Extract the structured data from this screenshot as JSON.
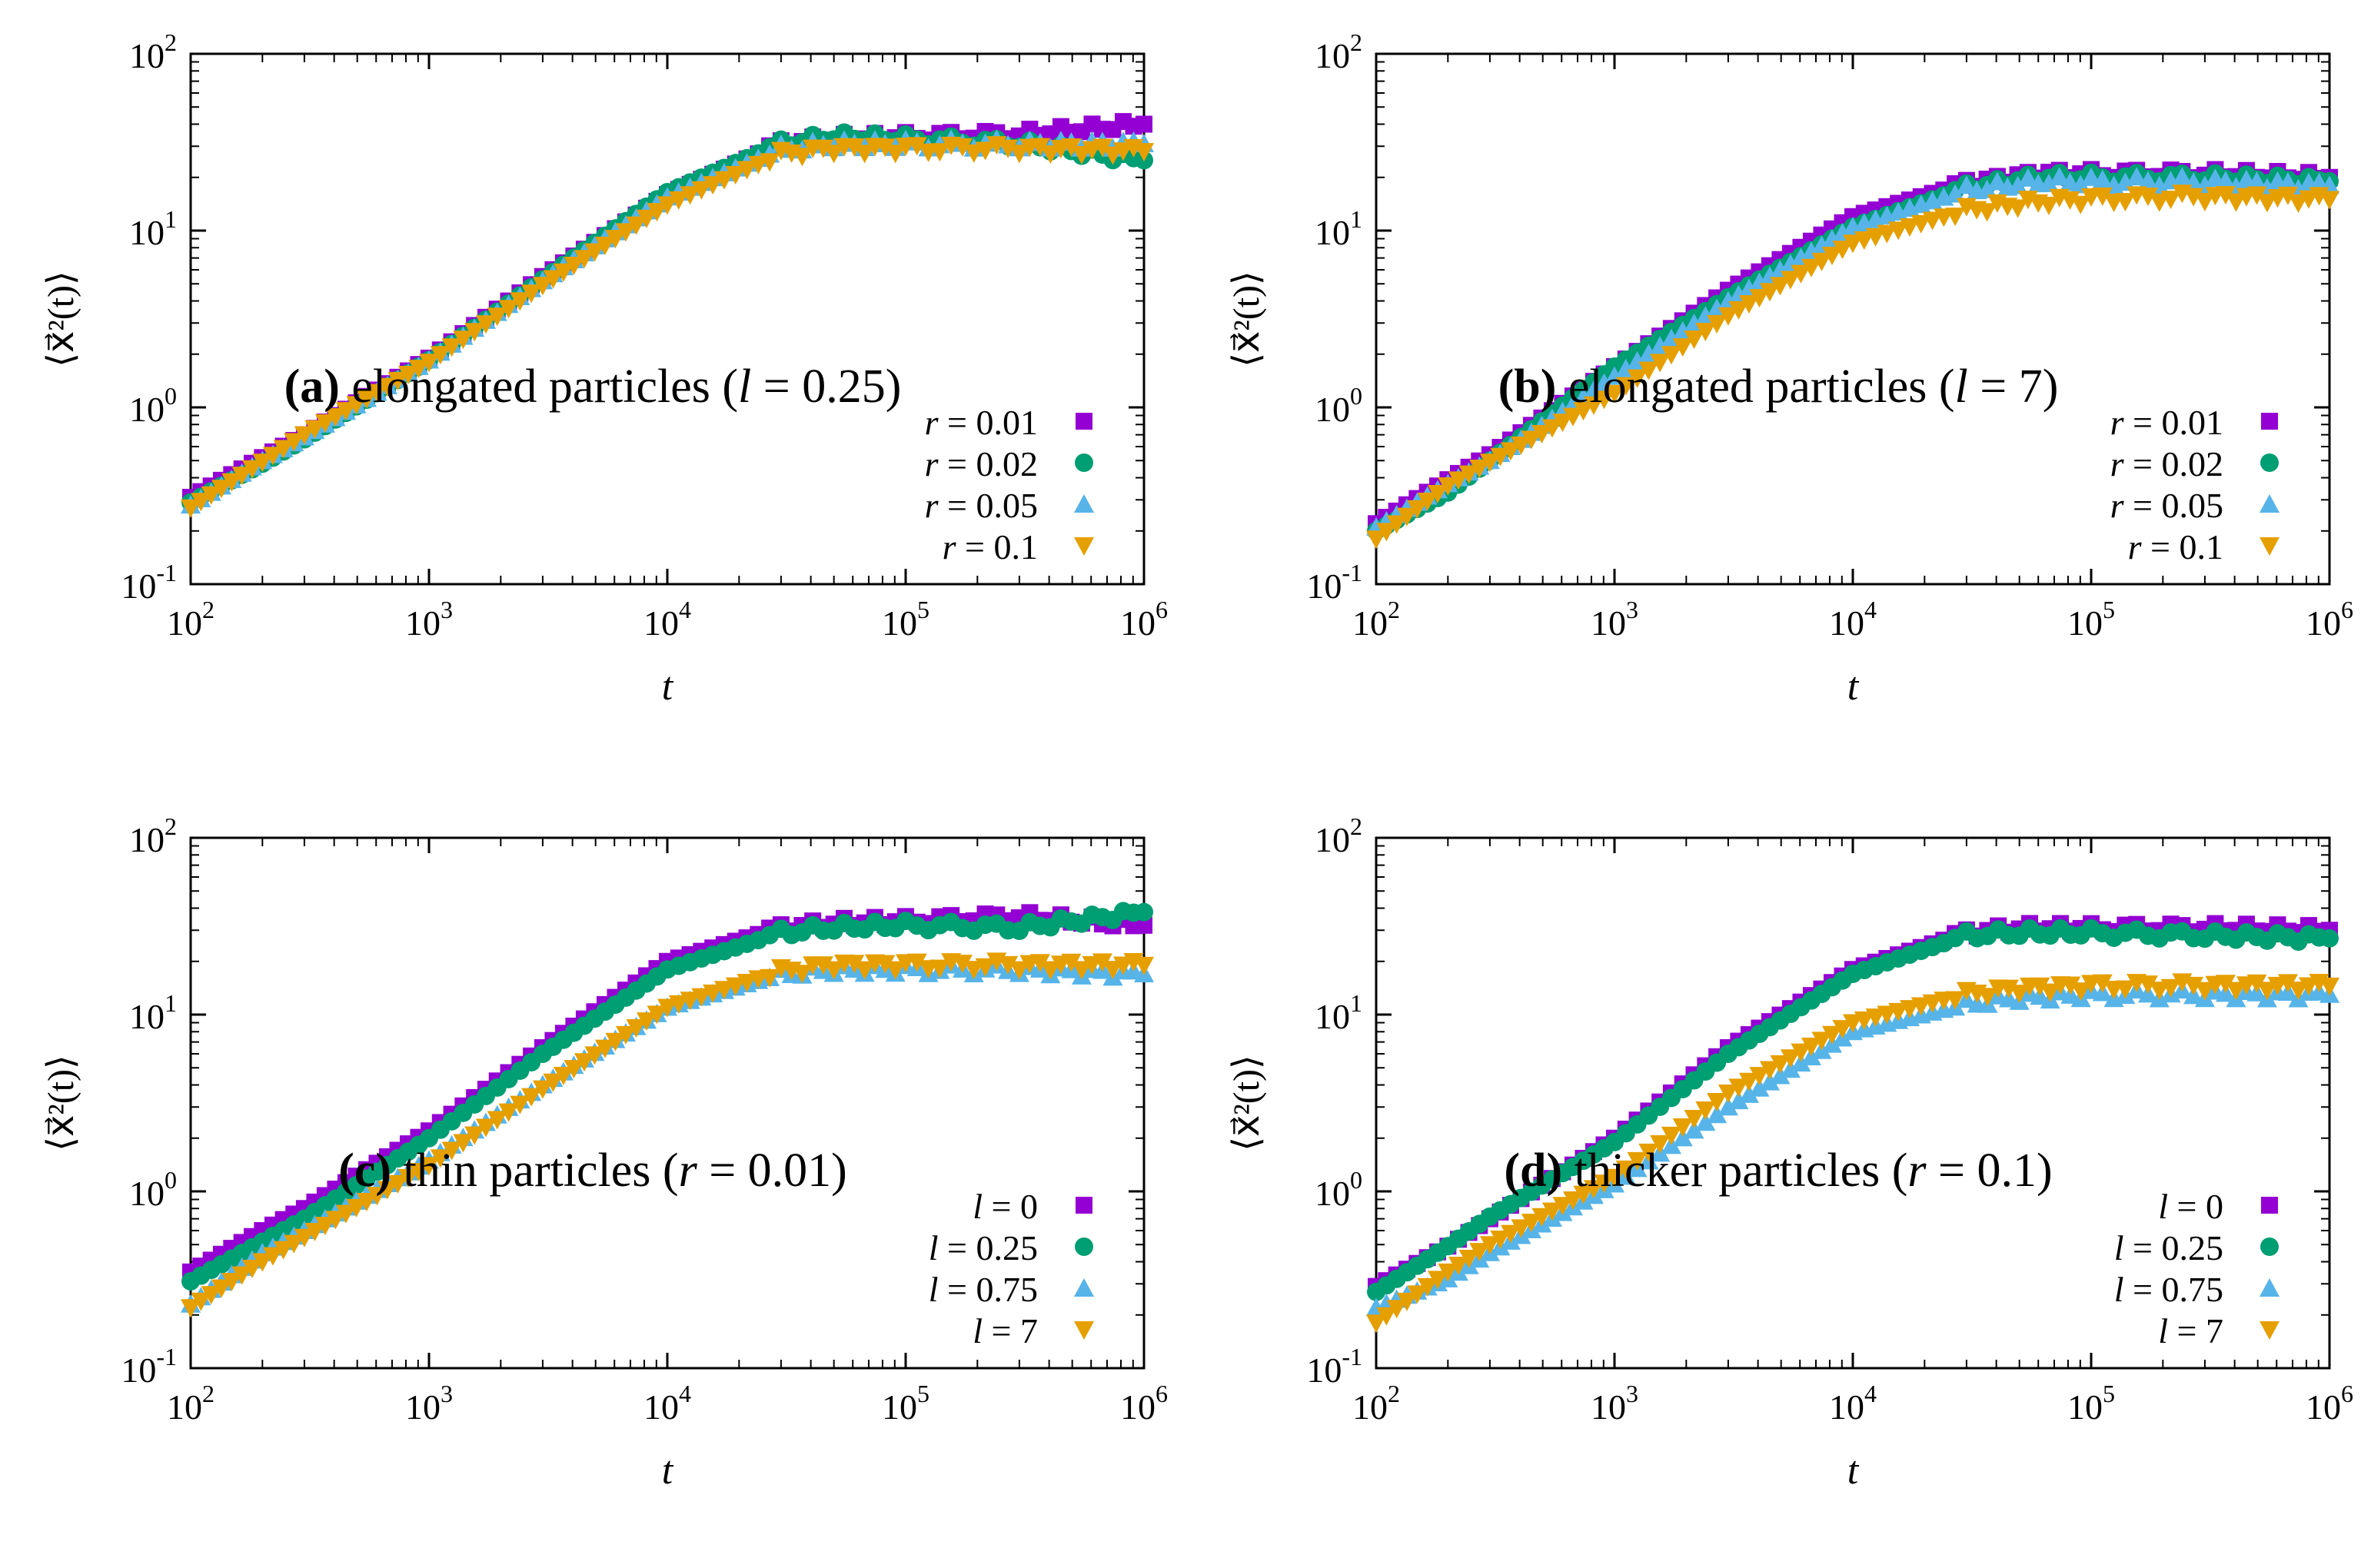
{
  "figure": {
    "xlabel": "t",
    "ylabel": "⟨x⃗²(t)⟩",
    "x_tick_labels": [
      "10^2",
      "10^3",
      "10^4",
      "10^5",
      "10^6"
    ],
    "y_tick_labels": [
      "10^-1",
      "10^0",
      "10^1",
      "10^2"
    ]
  },
  "colors": {
    "purple": "#9400d3",
    "green": "#009e73",
    "lightblue": "#56b4e9",
    "orange": "#e69f00"
  },
  "captions": [
    {
      "letter": "(a)",
      "pre": " elongated particles (",
      "var": "l",
      "post": " = 0.25)"
    },
    {
      "letter": "(b)",
      "pre": " elongated particles (",
      "var": "l",
      "post": " = 7)"
    },
    {
      "letter": "(c)",
      "pre": " thin particles (",
      "var": "r",
      "post": " = 0.01)"
    },
    {
      "letter": "(d)",
      "pre": " thicker particles (",
      "var": "r",
      "post": " = 0.1)"
    }
  ],
  "chart_data": [
    {
      "type": "scatter",
      "title": "(a) elongated particles (l = 0.25)",
      "xlabel": "t",
      "ylabel": "⟨x⃗²(t)⟩",
      "xscale": "log",
      "yscale": "log",
      "xlim": [
        100,
        1000000
      ],
      "ylim": [
        0.1,
        100
      ],
      "legend_position": "bottom-right",
      "series": [
        {
          "name": "r = 0.01",
          "var": "r",
          "value": "0.01",
          "marker": "square",
          "color": "#9400d3",
          "x": [
            100,
            200,
            300,
            1000,
            3000,
            10000,
            30000,
            50000,
            100000,
            300000,
            1000000
          ],
          "y": [
            0.31,
            0.52,
            0.7,
            1.9,
            5.5,
            16,
            31,
            33,
            34,
            35,
            40
          ]
        },
        {
          "name": "r = 0.02",
          "var": "r",
          "value": "0.02",
          "marker": "circle",
          "color": "#009e73",
          "x": [
            100,
            200,
            300,
            1000,
            3000,
            10000,
            30000,
            50000,
            100000,
            300000,
            1000000
          ],
          "y": [
            0.29,
            0.48,
            0.66,
            1.85,
            5.3,
            16.5,
            31,
            34,
            33,
            31,
            25
          ]
        },
        {
          "name": "r = 0.05",
          "var": "r",
          "value": "0.05",
          "marker": "triangle-up",
          "color": "#56b4e9",
          "x": [
            100,
            200,
            300,
            1000,
            3000,
            10000,
            30000,
            50000,
            100000,
            300000,
            1000000
          ],
          "y": [
            0.28,
            0.5,
            0.68,
            1.85,
            5.2,
            15.5,
            29,
            31,
            31,
            31,
            31
          ]
        },
        {
          "name": "r = 0.1",
          "var": "r",
          "value": "0.1",
          "marker": "triangle-down",
          "color": "#e69f00",
          "x": [
            100,
            200,
            300,
            1000,
            3000,
            10000,
            30000,
            50000,
            100000,
            300000,
            1000000
          ],
          "y": [
            0.27,
            0.49,
            0.7,
            1.8,
            4.9,
            14,
            27,
            29,
            29,
            29,
            28
          ]
        }
      ]
    },
    {
      "type": "scatter",
      "title": "(b) elongated particles (l = 7)",
      "xlabel": "t",
      "ylabel": "⟨x⃗²(t)⟩",
      "xscale": "log",
      "yscale": "log",
      "xlim": [
        100,
        1000000
      ],
      "ylim": [
        0.1,
        100
      ],
      "legend_position": "bottom-right",
      "series": [
        {
          "name": "r = 0.01",
          "var": "r",
          "value": "0.01",
          "marker": "square",
          "color": "#9400d3",
          "x": [
            100,
            200,
            300,
            1000,
            3000,
            10000,
            30000,
            60000,
            100000,
            300000,
            1000000
          ],
          "y": [
            0.22,
            0.39,
            0.54,
            1.7,
            4.6,
            12,
            18.5,
            21,
            21,
            21,
            20
          ]
        },
        {
          "name": "r = 0.02",
          "var": "r",
          "value": "0.02",
          "marker": "circle",
          "color": "#009e73",
          "x": [
            100,
            200,
            300,
            1000,
            3000,
            10000,
            30000,
            60000,
            100000,
            300000,
            1000000
          ],
          "y": [
            0.2,
            0.33,
            0.5,
            1.7,
            4.2,
            10.5,
            17.5,
            20,
            20,
            20,
            19
          ]
        },
        {
          "name": "r = 0.05",
          "var": "r",
          "value": "0.05",
          "marker": "triangle-up",
          "color": "#56b4e9",
          "x": [
            100,
            200,
            300,
            1000,
            3000,
            10000,
            30000,
            60000,
            100000,
            300000,
            1000000
          ],
          "y": [
            0.21,
            0.37,
            0.5,
            1.5,
            4.0,
            10.5,
            17,
            19,
            19,
            19,
            18
          ]
        },
        {
          "name": "r = 0.1",
          "var": "r",
          "value": "0.1",
          "marker": "triangle-down",
          "color": "#e69f00",
          "x": [
            100,
            200,
            300,
            1000,
            3000,
            10000,
            30000,
            60000,
            100000,
            300000,
            1000000
          ],
          "y": [
            0.18,
            0.36,
            0.49,
            1.2,
            3.3,
            8.5,
            13,
            14.5,
            15,
            15.5,
            15
          ]
        }
      ]
    },
    {
      "type": "scatter",
      "title": "(c) thin particles (r = 0.01)",
      "xlabel": "t",
      "ylabel": "⟨x⃗²(t)⟩",
      "xscale": "log",
      "yscale": "log",
      "xlim": [
        100,
        1000000
      ],
      "ylim": [
        0.1,
        100
      ],
      "legend_position": "bottom-right",
      "series": [
        {
          "name": "l = 0",
          "var": "l",
          "value": "0",
          "marker": "square",
          "color": "#9400d3",
          "x": [
            100,
            200,
            300,
            1000,
            3000,
            10000,
            30000,
            50000,
            100000,
            300000,
            1000000
          ],
          "y": [
            0.35,
            0.6,
            0.8,
            2.2,
            6.5,
            20,
            31,
            33,
            34,
            36,
            32
          ]
        },
        {
          "name": "l = 0.25",
          "var": "l",
          "value": "0.25",
          "marker": "circle",
          "color": "#009e73",
          "x": [
            100,
            200,
            300,
            1000,
            3000,
            10000,
            30000,
            50000,
            100000,
            300000,
            1000000
          ],
          "y": [
            0.31,
            0.52,
            0.7,
            2.0,
            6.0,
            18,
            29,
            31,
            32,
            31,
            38
          ]
        },
        {
          "name": "l = 0.75",
          "var": "l",
          "value": "0.75",
          "marker": "triangle-up",
          "color": "#56b4e9",
          "x": [
            100,
            200,
            300,
            1000,
            3000,
            10000,
            30000,
            50000,
            100000,
            300000,
            1000000
          ],
          "y": [
            0.23,
            0.45,
            0.6,
            1.5,
            4.0,
            11,
            17,
            18,
            18,
            18,
            17
          ]
        },
        {
          "name": "l = 7",
          "var": "l",
          "value": "7",
          "marker": "triangle-down",
          "color": "#e69f00",
          "x": [
            100,
            200,
            300,
            1000,
            3000,
            10000,
            30000,
            50000,
            100000,
            300000,
            1000000
          ],
          "y": [
            0.22,
            0.4,
            0.55,
            1.4,
            3.8,
            11,
            17.5,
            19,
            19,
            19,
            19
          ]
        }
      ]
    },
    {
      "type": "scatter",
      "title": "(d) thicker particles (r = 0.1)",
      "xlabel": "t",
      "ylabel": "⟨x⃗²(t)⟩",
      "xscale": "log",
      "yscale": "log",
      "xlim": [
        100,
        1000000
      ],
      "ylim": [
        0.1,
        100
      ],
      "legend_position": "bottom-right",
      "series": [
        {
          "name": "l = 0",
          "var": "l",
          "value": "0",
          "marker": "square",
          "color": "#9400d3",
          "x": [
            100,
            200,
            300,
            1000,
            3000,
            10000,
            30000,
            50000,
            100000,
            300000,
            1000000
          ],
          "y": [
            0.29,
            0.49,
            0.7,
            2.0,
            6.5,
            18,
            29,
            31,
            31,
            31,
            30
          ]
        },
        {
          "name": "l = 0.25",
          "var": "l",
          "value": "0.25",
          "marker": "circle",
          "color": "#009e73",
          "x": [
            100,
            200,
            300,
            1000,
            3000,
            10000,
            30000,
            50000,
            100000,
            300000,
            1000000
          ],
          "y": [
            0.27,
            0.49,
            0.72,
            1.9,
            6.0,
            17,
            28,
            29,
            29,
            28,
            27
          ]
        },
        {
          "name": "l = 0.75",
          "var": "l",
          "value": "0.75",
          "marker": "triangle-up",
          "color": "#56b4e9",
          "x": [
            100,
            200,
            300,
            1000,
            3000,
            10000,
            30000,
            50000,
            100000,
            300000,
            1000000
          ],
          "y": [
            0.22,
            0.32,
            0.45,
            1.1,
            3.0,
            8.0,
            11.5,
            12.5,
            13,
            13,
            13
          ]
        },
        {
          "name": "l = 7",
          "var": "l",
          "value": "7",
          "marker": "triangle-down",
          "color": "#e69f00",
          "x": [
            100,
            200,
            300,
            1000,
            3000,
            10000,
            30000,
            50000,
            100000,
            300000,
            1000000
          ],
          "y": [
            0.18,
            0.35,
            0.5,
            1.2,
            3.6,
            9.0,
            13,
            14,
            14.5,
            14.5,
            14.5
          ]
        }
      ]
    }
  ]
}
